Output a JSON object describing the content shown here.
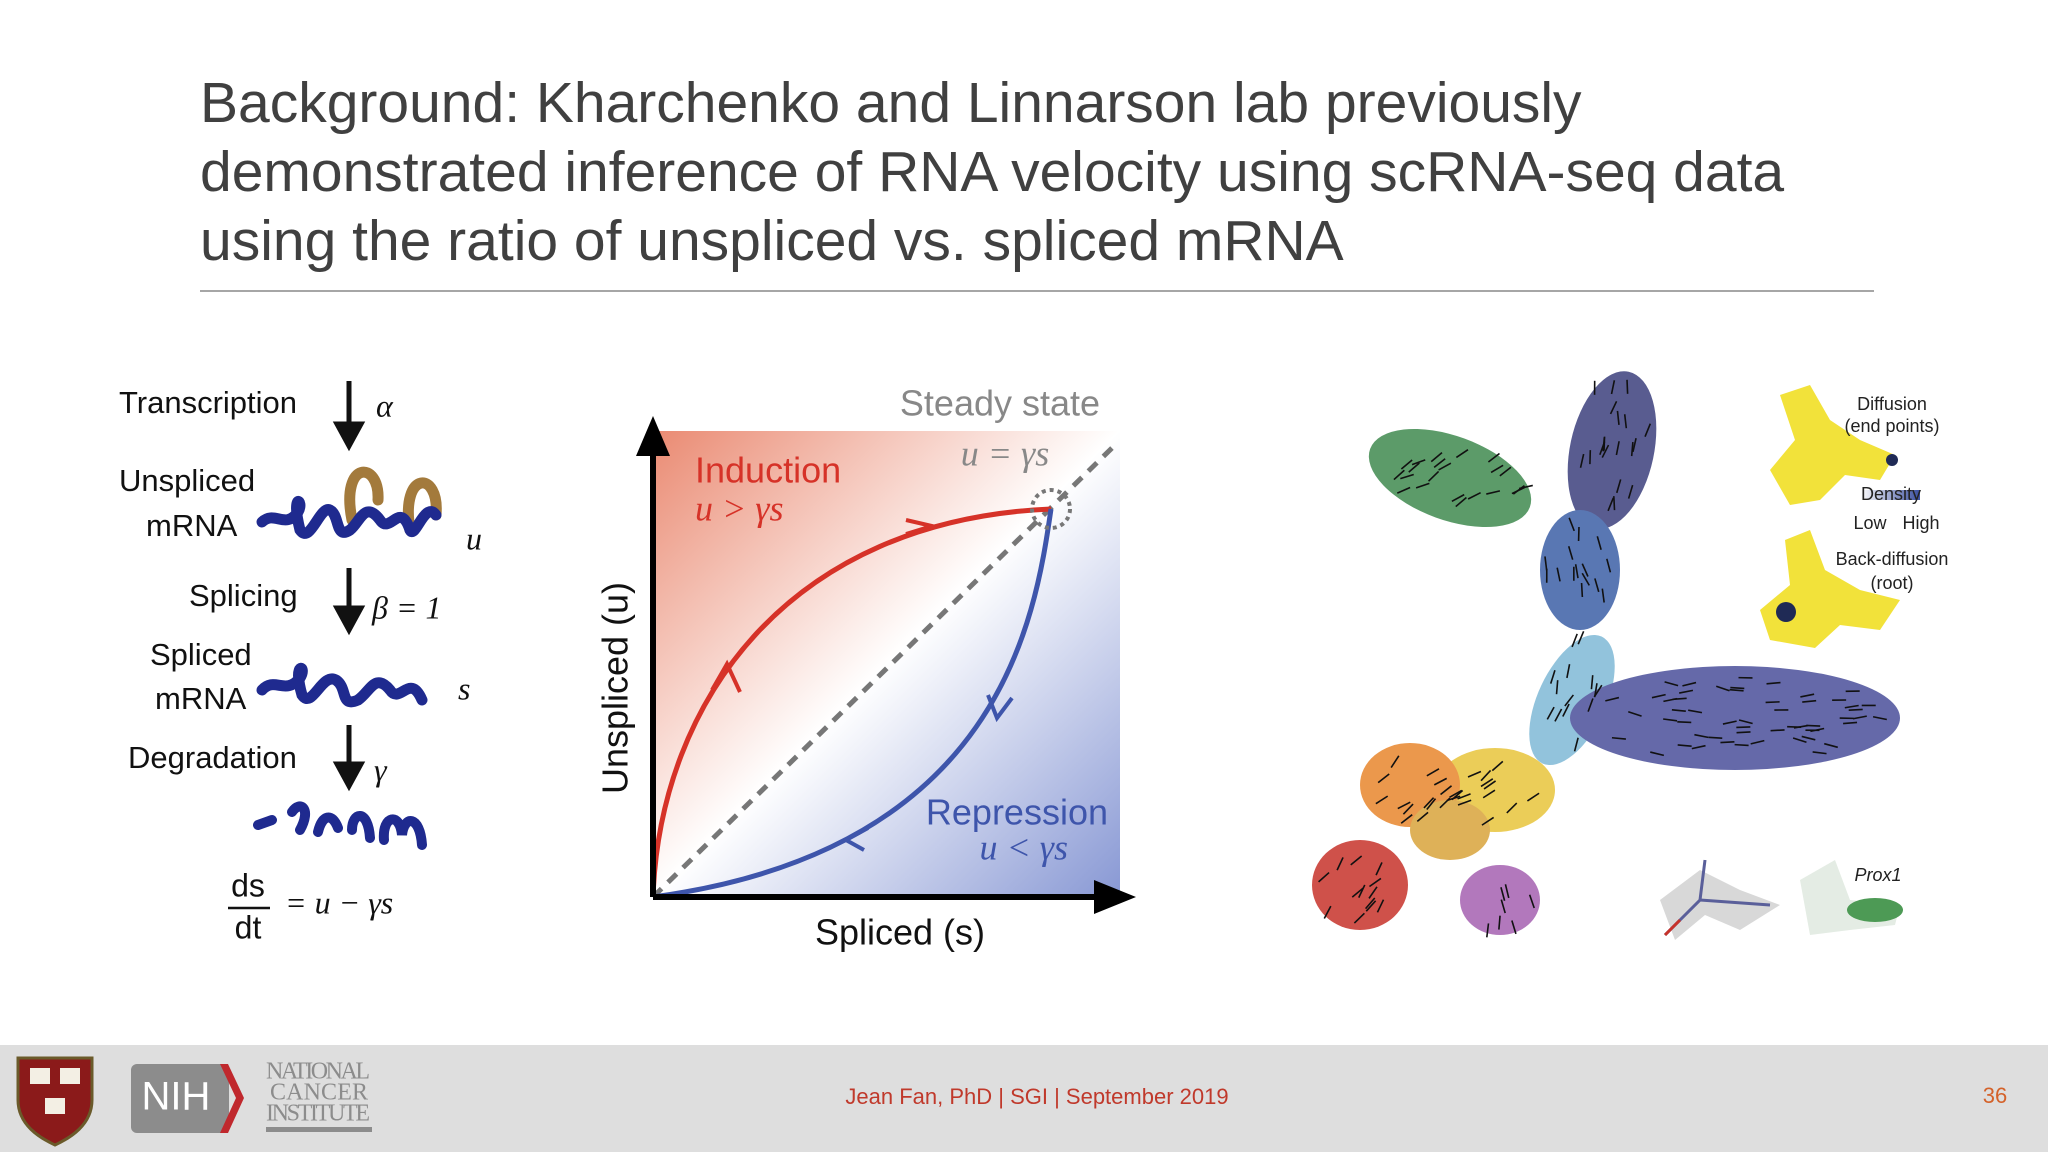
{
  "title": {
    "lines": [
      "Background: Kharchenko and Linnarson lab previously",
      "demonstrated inference of RNA velocity using scRNA-seq data",
      "using the ratio of unspliced vs. spliced mRNA"
    ]
  },
  "figure": {
    "left": {
      "transcription": "Transcription",
      "alpha": "α",
      "unspliced": [
        "Unspliced",
        "mRNA"
      ],
      "u": "u",
      "splicing": "Splicing",
      "beta": "β = 1",
      "spliced": [
        "Spliced",
        "mRNA"
      ],
      "s": "s",
      "degradation": "Degradation",
      "gamma": "γ",
      "equation": {
        "numerator": "ds",
        "denominator": "dt",
        "rhs": "= u − γs"
      }
    },
    "middle": {
      "steady_state": "Steady state",
      "steady_eq": "u = γs",
      "induction": "Induction",
      "induction_eq": "u > γs",
      "repression": "Repression",
      "repression_eq": "u < γs",
      "y_label": "Unspliced (u)",
      "x_label": "Spliced (s)"
    },
    "right": {
      "diffusion": [
        "Diffusion",
        "(end points)"
      ],
      "density": "Density",
      "low": "Low",
      "high": "High",
      "back_diffusion": [
        "Back-diffusion",
        "(root)"
      ],
      "prox1": "Prox1"
    }
  },
  "footer": {
    "nih": "NIH",
    "nci": [
      "NATIONAL",
      "CANCER",
      "INSTITUTE"
    ],
    "text": "Jean Fan, PhD | SGI | September 2019",
    "page_number": "36"
  }
}
